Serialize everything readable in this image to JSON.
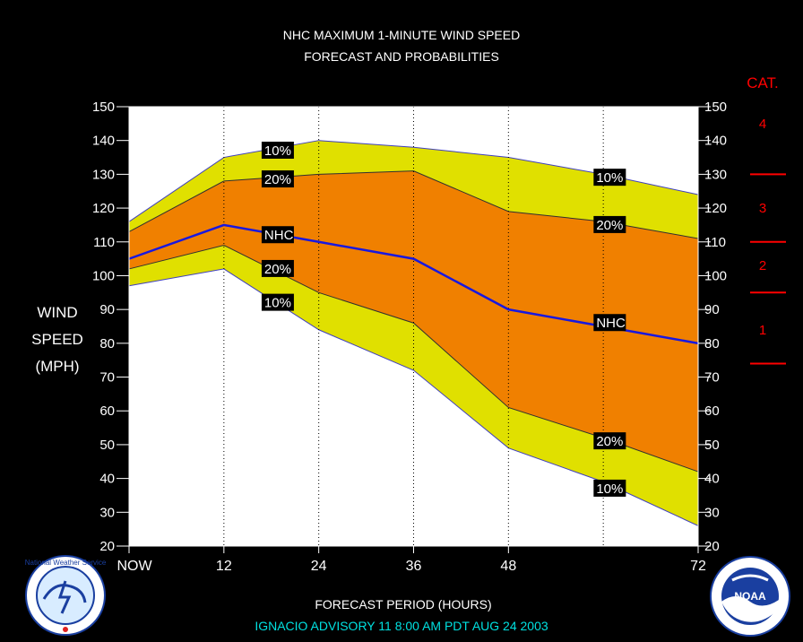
{
  "title_line1": "NHC MAXIMUM 1-MINUTE WIND SPEED",
  "title_line2": "FORECAST AND PROBABILITIES",
  "ylabel": [
    "WIND",
    "SPEED",
    "(MPH)"
  ],
  "xlabel": "FORECAST PERIOD (HOURS)",
  "advisory": "IGNACIO    ADVISORY  11  8:00  AM  PDT  AUG  24  2003",
  "cat_title": "CAT.",
  "categories": [
    {
      "label": "4",
      "value": 145
    },
    {
      "label": "3",
      "value": 120
    },
    {
      "label": "2",
      "value": 103
    },
    {
      "label": "1",
      "value": 84
    }
  ],
  "category_thresholds": [
    130,
    110,
    95,
    74
  ],
  "logos": {
    "left": "National Weather Service",
    "right": "NOAA"
  },
  "colors": {
    "background": "#000000",
    "plot_bg": "#ffffff",
    "outer_band": "#e0e000",
    "inner_band": "#f08000",
    "nhc_line": "#1818e0",
    "category": "#ff0000",
    "advisory": "#00e0e0"
  },
  "chart_data": {
    "type": "area",
    "x_ticks": [
      {
        "x": 0,
        "label": "NOW"
      },
      {
        "x": 12,
        "label": "12"
      },
      {
        "x": 24,
        "label": "24"
      },
      {
        "x": 36,
        "label": "36"
      },
      {
        "x": 48,
        "label": "48"
      },
      {
        "x": 72,
        "label": "72"
      }
    ],
    "vertical_gridlines": [
      12,
      24,
      36,
      48,
      60
    ],
    "xlim": [
      0,
      72
    ],
    "ylim": [
      20,
      150
    ],
    "y_ticks": [
      20,
      30,
      40,
      50,
      60,
      70,
      80,
      90,
      100,
      110,
      120,
      130,
      140,
      150
    ],
    "x": [
      0,
      12,
      24,
      36,
      48,
      60,
      72
    ],
    "series": [
      {
        "name": "10%",
        "role": "upper_outer",
        "values": [
          116,
          135,
          140,
          138,
          135,
          130,
          124
        ]
      },
      {
        "name": "20%",
        "role": "upper_inner",
        "values": [
          113,
          128,
          130,
          131,
          119,
          116,
          111
        ]
      },
      {
        "name": "NHC",
        "role": "forecast",
        "values": [
          105,
          115,
          110,
          105,
          90,
          85,
          80
        ]
      },
      {
        "name": "20%",
        "role": "lower_inner",
        "values": [
          102,
          109,
          95,
          86,
          61,
          52,
          42
        ]
      },
      {
        "name": "10%",
        "role": "lower_outer",
        "values": [
          97,
          102,
          84,
          72,
          49,
          39,
          26
        ]
      }
    ],
    "annotations": [
      {
        "text": "10%",
        "x": 17,
        "y": 137
      },
      {
        "text": "20%",
        "x": 17,
        "y": 128.5
      },
      {
        "text": "NHC",
        "x": 17,
        "y": 112
      },
      {
        "text": "20%",
        "x": 17,
        "y": 102
      },
      {
        "text": "10%",
        "x": 17,
        "y": 92
      },
      {
        "text": "10%",
        "x": 59,
        "y": 129
      },
      {
        "text": "20%",
        "x": 59,
        "y": 115
      },
      {
        "text": "NHC",
        "x": 59,
        "y": 86
      },
      {
        "text": "20%",
        "x": 59,
        "y": 51
      },
      {
        "text": "10%",
        "x": 59,
        "y": 37
      }
    ]
  }
}
